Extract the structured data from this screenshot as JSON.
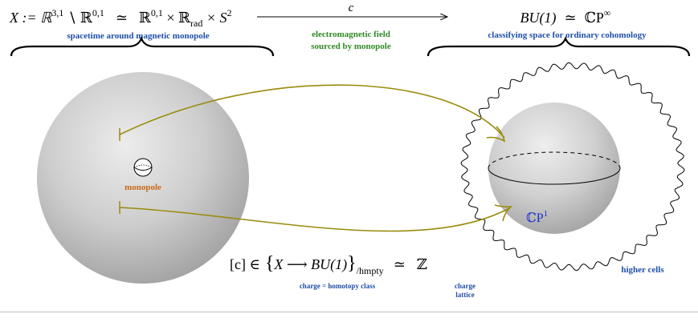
{
  "top": {
    "left_math_head": "X := ℝ",
    "left_sup_a": "3,1",
    "left_setminus": " ∖ ℝ",
    "left_sup_b": "0,1",
    "left_simeq": "≃",
    "left_rhs_head": "ℝ",
    "left_sup_c": "0,1",
    "left_times_r": " × ℝ",
    "left_sub_rad": "rad",
    "left_times_s": " × S",
    "left_sup_two": "2",
    "left_caption": "spacetime around magnetic monopole",
    "arrow_label": "c",
    "arrow_caption_line1": "electromagnetic field",
    "arrow_caption_line2": "sourced by monopole",
    "right_math_head": "BU(1)",
    "right_simeq": "≃",
    "right_cp": "ℂP",
    "right_sup_inf": "∞",
    "right_caption": "classifying space for ordinary cohomology"
  },
  "left_sphere": {
    "monopole_label": "monopole"
  },
  "right_sphere": {
    "cp_label": "ℂP",
    "cp_sup": "1",
    "higher_cells_label": "higher cells"
  },
  "bottom": {
    "charge_lhs": "[c]  ∈",
    "charge_set": "X ⟶ BU(1)",
    "charge_quotient": "/hmpty",
    "charge_simeq": "≃",
    "charge_z": "ℤ",
    "charge_caption": "charge = homotopy class",
    "lattice_line1": "charge",
    "lattice_line2": "lattice"
  },
  "colors": {
    "caption_blue": "#1f4fa8",
    "caption_green": "#2f8a25",
    "caption_orange": "#c86a16",
    "map_arrow_olive": "#9a8b0c",
    "cp1_blue": "#2030d0"
  }
}
